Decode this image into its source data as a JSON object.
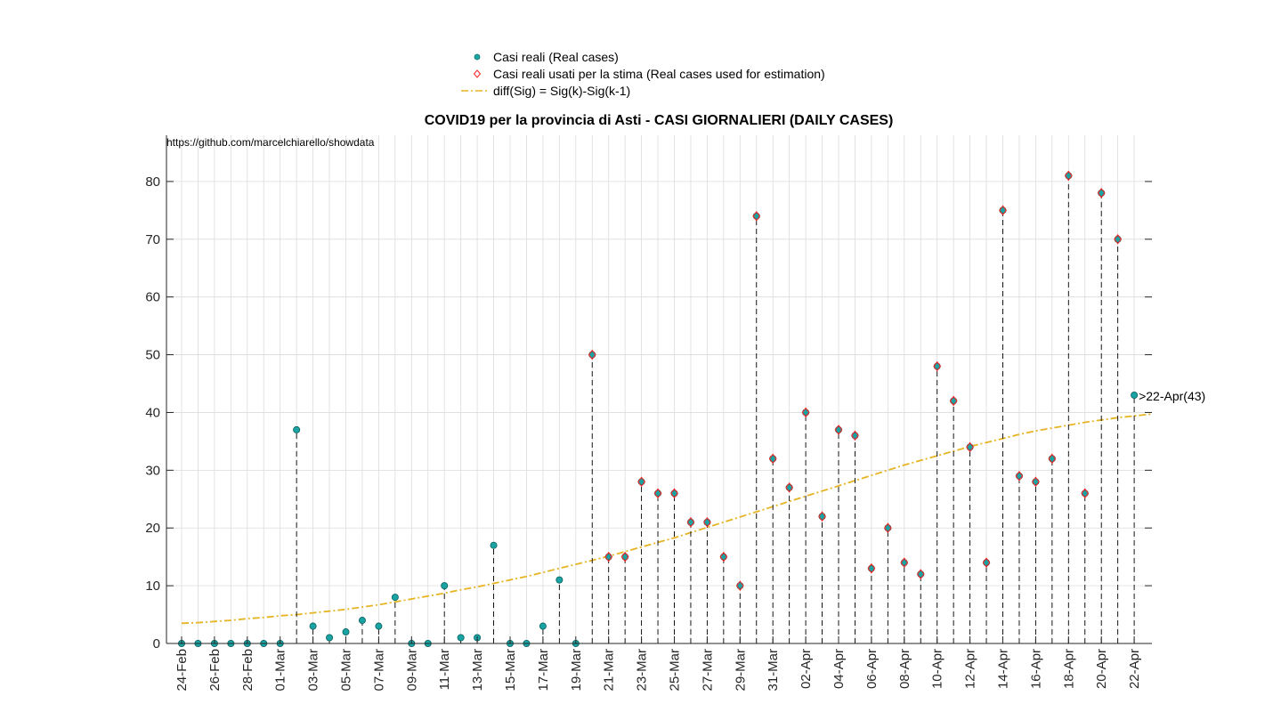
{
  "chart_data": {
    "type": "scatter",
    "title": "COVID19 per la provincia di Asti - CASI GIORNALIERI (DAILY CASES)",
    "source_note": "https://github.com/marcelchiarello/showdata",
    "xlabel": "",
    "ylabel": "",
    "ylim": [
      0,
      88
    ],
    "y_ticks": [
      0,
      10,
      20,
      30,
      40,
      50,
      60,
      70,
      80
    ],
    "grid": true,
    "legend_position": "top-center",
    "dates": [
      "24-Feb",
      "25-Feb",
      "26-Feb",
      "27-Feb",
      "28-Feb",
      "29-Feb",
      "01-Mar",
      "02-Mar",
      "03-Mar",
      "04-Mar",
      "05-Mar",
      "06-Mar",
      "07-Mar",
      "08-Mar",
      "09-Mar",
      "10-Mar",
      "11-Mar",
      "12-Mar",
      "13-Mar",
      "14-Mar",
      "15-Mar",
      "16-Mar",
      "17-Mar",
      "18-Mar",
      "19-Mar",
      "20-Mar",
      "21-Mar",
      "22-Mar",
      "23-Mar",
      "24-Mar",
      "25-Mar",
      "26-Mar",
      "27-Mar",
      "28-Mar",
      "29-Mar",
      "30-Mar",
      "31-Mar",
      "01-Apr",
      "02-Apr",
      "03-Apr",
      "04-Apr",
      "05-Apr",
      "06-Apr",
      "07-Apr",
      "08-Apr",
      "09-Apr",
      "10-Apr",
      "11-Apr",
      "12-Apr",
      "13-Apr",
      "14-Apr",
      "15-Apr",
      "16-Apr",
      "17-Apr",
      "18-Apr",
      "19-Apr",
      "20-Apr",
      "21-Apr",
      "22-Apr"
    ],
    "x_tick_labels": [
      "24-Feb",
      "26-Feb",
      "28-Feb",
      "01-Mar",
      "03-Mar",
      "05-Mar",
      "07-Mar",
      "09-Mar",
      "11-Mar",
      "13-Mar",
      "15-Mar",
      "17-Mar",
      "19-Mar",
      "21-Mar",
      "23-Mar",
      "25-Mar",
      "27-Mar",
      "29-Mar",
      "31-Mar",
      "02-Apr",
      "04-Apr",
      "06-Apr",
      "08-Apr",
      "10-Apr",
      "12-Apr",
      "14-Apr",
      "16-Apr",
      "18-Apr",
      "20-Apr",
      "22-Apr"
    ],
    "series": [
      {
        "name": "Casi reali (Real cases)",
        "marker": "circle",
        "color": "#1aa3a3",
        "values": [
          0,
          0,
          0,
          0,
          0,
          0,
          0,
          37,
          3,
          1,
          2,
          4,
          3,
          8,
          0,
          0,
          10,
          1,
          1,
          17,
          0,
          0,
          3,
          11,
          0,
          50,
          15,
          15,
          28,
          26,
          26,
          21,
          21,
          15,
          10,
          74,
          32,
          27,
          40,
          22,
          37,
          36,
          13,
          20,
          14,
          12,
          48,
          42,
          34,
          14,
          75,
          29,
          28,
          32,
          81,
          26,
          78,
          70,
          43
        ]
      },
      {
        "name": "Casi reali usati per la stima (Real cases used for estimation)",
        "marker": "diamond",
        "color": "#ff2020",
        "start_date": "20-Mar",
        "values": [
          50,
          15,
          15,
          28,
          26,
          26,
          21,
          21,
          15,
          10,
          74,
          32,
          27,
          40,
          22,
          37,
          36,
          13,
          20,
          14,
          12,
          48,
          42,
          34,
          14,
          75,
          29,
          28,
          32,
          81,
          26,
          78,
          70
        ]
      },
      {
        "name": "diff(Sig) = Sig(k)-Sig(k-1)",
        "style": "dash-dot",
        "color": "#e6b422",
        "values": [
          3.5,
          3.6,
          3.8,
          4.0,
          4.3,
          4.5,
          4.8,
          5.0,
          5.3,
          5.6,
          5.9,
          6.3,
          6.7,
          7.2,
          7.7,
          8.2,
          8.7,
          9.3,
          9.8,
          10.4,
          11.0,
          11.6,
          12.3,
          13.0,
          13.7,
          14.4,
          15.1,
          15.9,
          16.7,
          17.5,
          18.3,
          19.2,
          20.1,
          21.0,
          21.9,
          22.8,
          23.7,
          24.6,
          25.5,
          26.4,
          27.3,
          28.2,
          29.1,
          30.0,
          30.9,
          31.7,
          32.5,
          33.3,
          34.1,
          34.8,
          35.5,
          36.2,
          36.8,
          37.3,
          37.8,
          38.3,
          38.7,
          39.1,
          39.4
        ],
        "extends_beyond_last_date": true
      }
    ],
    "annotation": {
      "text": ">22-Apr(43)",
      "date": "22-Apr",
      "value": 43
    }
  }
}
